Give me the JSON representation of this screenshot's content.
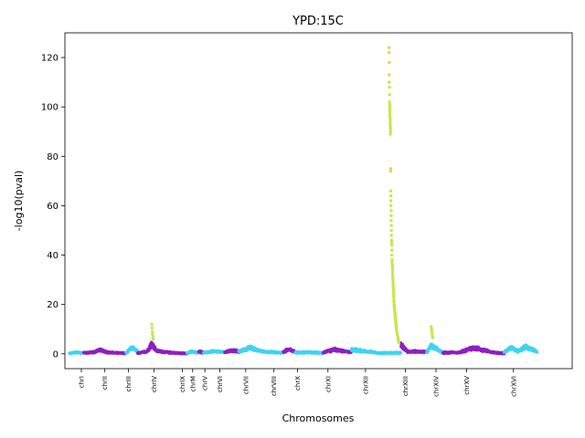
{
  "chart_data": {
    "type": "scatter",
    "title": "YPD:15C",
    "xlabel": "Chromosomes",
    "ylabel": "-log10(pval)",
    "ylim": [
      -6,
      130
    ],
    "xlim": [
      0,
      108
    ],
    "yticks": [
      0,
      20,
      40,
      60,
      80,
      100,
      120
    ],
    "grid": false,
    "colors": {
      "cyan": "#3fd3f3",
      "purple": "#8e1fc2",
      "lime": "#c4e84a"
    },
    "chromosomes": [
      {
        "name": "chrI",
        "start": 1.0,
        "end": 4.0,
        "color": "cyan",
        "tick": 3.5,
        "profile": [
          [
            1.0,
            0.5
          ],
          [
            2.5,
            1.0
          ],
          [
            4.0,
            0.8
          ]
        ]
      },
      {
        "name": "chrII",
        "start": 4.0,
        "end": 13.0,
        "color": "purple",
        "tick": 8.5,
        "profile": [
          [
            4.0,
            0.8
          ],
          [
            6.0,
            1.0
          ],
          [
            7.5,
            2.5
          ],
          [
            9.0,
            1.0
          ],
          [
            13.0,
            0.5
          ]
        ]
      },
      {
        "name": "chrIII",
        "start": 13.0,
        "end": 15.5,
        "color": "cyan",
        "tick": 13.5,
        "profile": [
          [
            13.0,
            0.6
          ],
          [
            14.2,
            3.5
          ],
          [
            15.5,
            1.5
          ]
        ]
      },
      {
        "name": "chrIV",
        "start": 15.5,
        "end": 26.0,
        "color": "purple",
        "tick": 19.0,
        "profile": [
          [
            15.5,
            0.5
          ],
          [
            17.5,
            1.5
          ],
          [
            18.5,
            5.5
          ],
          [
            19.5,
            1.8
          ],
          [
            22.0,
            1.0
          ],
          [
            26.0,
            0.4
          ]
        ]
      },
      {
        "name": "chrIX",
        "start": 26.0,
        "end": 28.5,
        "color": "cyan",
        "tick": 25.0,
        "profile": [
          [
            26.0,
            0.5
          ],
          [
            27.0,
            1.5
          ],
          [
            28.5,
            0.8
          ]
        ]
      },
      {
        "name": "chrM",
        "start": 28.5,
        "end": 29.5,
        "color": "purple",
        "tick": 27.2,
        "profile": [
          [
            28.5,
            1.5
          ],
          [
            29.5,
            1.0
          ]
        ]
      },
      {
        "name": "chrV",
        "start": 29.5,
        "end": 34.0,
        "color": "cyan",
        "tick": 29.8,
        "profile": [
          [
            29.5,
            0.8
          ],
          [
            31.5,
            1.5
          ],
          [
            34.0,
            1.2
          ]
        ]
      },
      {
        "name": "chrVI",
        "start": 34.0,
        "end": 37.0,
        "color": "purple",
        "tick": 33.0,
        "profile": [
          [
            34.0,
            1.0
          ],
          [
            35.5,
            2.0
          ],
          [
            37.0,
            1.5
          ]
        ]
      },
      {
        "name": "chrVII",
        "start": 37.0,
        "end": 46.5,
        "color": "cyan",
        "tick": 38.5,
        "profile": [
          [
            37.0,
            1.5
          ],
          [
            39.5,
            3.5
          ],
          [
            42.0,
            1.5
          ],
          [
            46.5,
            0.8
          ]
        ]
      },
      {
        "name": "chrVIII",
        "start": 46.5,
        "end": 49.0,
        "color": "purple",
        "tick": 44.5,
        "profile": [
          [
            46.5,
            1.0
          ],
          [
            47.7,
            3.0
          ],
          [
            49.0,
            1.2
          ]
        ]
      },
      {
        "name": "chrX",
        "start": 49.0,
        "end": 55.0,
        "color": "cyan",
        "tick": 49.5,
        "profile": [
          [
            49.0,
            1.0
          ],
          [
            52.0,
            1.0
          ],
          [
            55.0,
            0.8
          ]
        ]
      },
      {
        "name": "chrXI",
        "start": 55.0,
        "end": 61.0,
        "color": "purple",
        "tick": 56.0,
        "profile": [
          [
            55.0,
            1.0
          ],
          [
            57.5,
            2.5
          ],
          [
            61.0,
            1.0
          ]
        ]
      },
      {
        "name": "chrXII",
        "start": 61.0,
        "end": 71.5,
        "color": "cyan",
        "tick": 64.0,
        "profile": [
          [
            61.0,
            2.5
          ],
          [
            64.0,
            1.5
          ],
          [
            67.0,
            0.7
          ],
          [
            71.5,
            0.8
          ]
        ]
      },
      {
        "name": "chrXIII",
        "start": 71.5,
        "end": 77.0,
        "color": "purple",
        "tick": 72.5,
        "profile": [
          [
            71.5,
            5.0
          ],
          [
            73.0,
            1.5
          ],
          [
            75.5,
            1.5
          ],
          [
            77.0,
            1.2
          ]
        ]
      },
      {
        "name": "chrXIV",
        "start": 77.0,
        "end": 80.5,
        "color": "cyan",
        "tick": 79.0,
        "profile": [
          [
            77.0,
            1.0
          ],
          [
            78.0,
            4.5
          ],
          [
            79.0,
            3.0
          ],
          [
            80.5,
            1.0
          ]
        ]
      },
      {
        "name": "chrXV",
        "start": 80.5,
        "end": 93.5,
        "color": "purple",
        "tick": 85.5,
        "profile": [
          [
            80.5,
            0.8
          ],
          [
            84.0,
            1.0
          ],
          [
            87.0,
            3.5
          ],
          [
            91.0,
            1.0
          ],
          [
            93.5,
            0.5
          ]
        ]
      },
      {
        "name": "chrXVI",
        "start": 93.5,
        "end": 100.5,
        "color": "cyan",
        "tick": 95.5,
        "profile": [
          [
            93.5,
            1.0
          ],
          [
            95.0,
            3.5
          ],
          [
            96.5,
            1.5
          ],
          [
            98.0,
            4.0
          ],
          [
            100.5,
            1.5
          ]
        ]
      }
    ],
    "highlights": [
      {
        "color": "lime",
        "x": [
          18.5,
          18.55,
          18.6,
          18.65,
          18.7,
          18.75,
          18.8
        ],
        "y": [
          12,
          10.5,
          9,
          8,
          7.5,
          6.5,
          6
        ]
      },
      {
        "color": "lime",
        "x": [
          78.0,
          78.05,
          78.1,
          78.15,
          78.2,
          78.25,
          78.3
        ],
        "y": [
          11,
          10,
          9.5,
          8.5,
          8,
          7,
          6.5
        ]
      },
      {
        "color": "lime",
        "x": [
          69.0,
          69.0,
          69.05,
          69.05,
          69.05,
          69.1,
          69.1,
          69.1,
          69.15,
          69.15,
          69.15,
          69.2,
          69.2,
          69.2,
          69.25,
          69.25,
          69.25,
          69.3,
          69.3,
          69.3,
          69.3,
          69.35,
          69.35,
          69.35,
          69.4,
          69.4,
          69.4,
          69.45,
          69.45,
          69.45,
          69.5,
          69.5,
          69.5,
          69.55,
          69.55,
          69.6,
          69.6,
          69.6,
          69.65,
          69.65,
          69.7,
          69.7,
          69.75,
          69.75,
          69.8,
          69.8,
          69.85,
          69.85,
          69.9,
          69.9,
          69.95,
          69.95,
          70.0,
          70.0,
          70.05,
          70.05,
          70.1,
          70.1,
          70.15,
          70.15,
          70.2,
          70.2,
          70.25,
          70.25,
          70.3,
          70.3,
          70.35,
          70.35,
          70.4,
          70.4,
          70.45,
          70.45,
          70.5,
          70.5,
          70.55,
          70.55,
          70.6,
          70.6,
          70.65,
          70.7,
          70.75,
          70.8,
          70.85,
          70.9,
          70.95,
          71.0,
          71.05,
          71.1
        ],
        "y": [
          124,
          122,
          118,
          113,
          110,
          108,
          105,
          102,
          101,
          100,
          99,
          98,
          97,
          96,
          95,
          94,
          93,
          92,
          91,
          90,
          89,
          75,
          74,
          66,
          64,
          62,
          60,
          58,
          56,
          54,
          52,
          50,
          48,
          46,
          45,
          44,
          42,
          40,
          38,
          37,
          36,
          35,
          34,
          33,
          32,
          31,
          30,
          29,
          28,
          27,
          26,
          25,
          24,
          23,
          22,
          21,
          20,
          19.5,
          19,
          18.5,
          18,
          17.5,
          17,
          16.5,
          16,
          15.5,
          15,
          14.5,
          14,
          13.5,
          13,
          12.5,
          12,
          11.5,
          11,
          10.5,
          10,
          9.5,
          9,
          8.5,
          8,
          7.5,
          7,
          6.5,
          6,
          5.5,
          5,
          4.5
        ]
      }
    ]
  }
}
